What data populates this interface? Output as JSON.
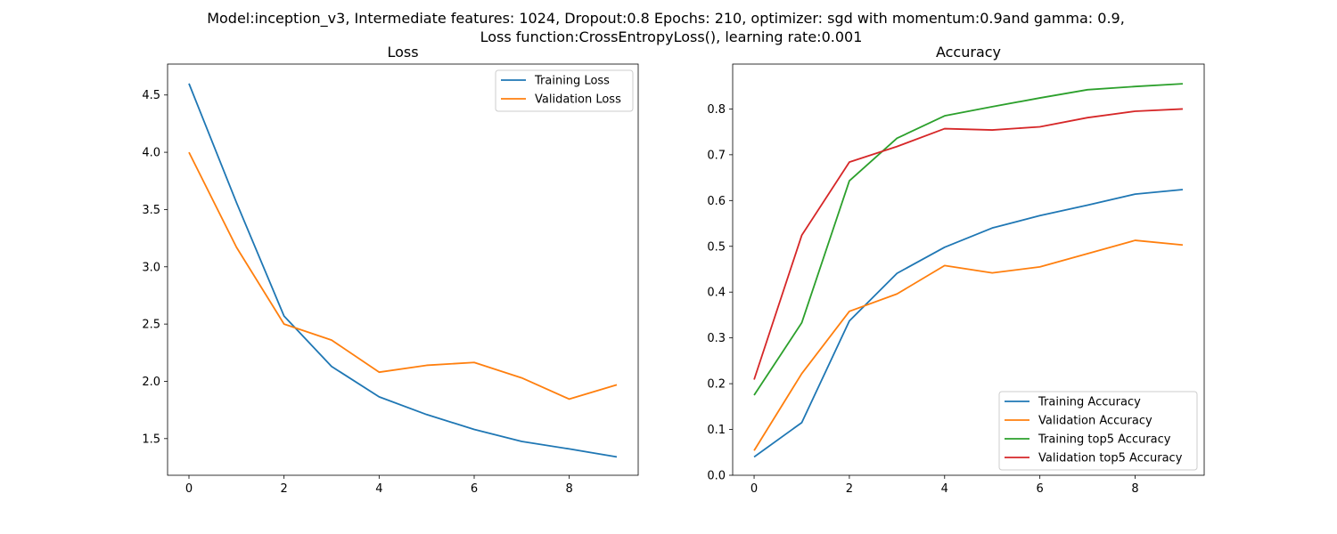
{
  "figure": {
    "suptitle_line1": "Model:inception_v3, Intermediate features: 1024, Dropout:0.8 Epochs: 210, optimizer: sgd with momentum:0.9and gamma: 0.9,",
    "suptitle_line2": "Loss function:CrossEntropyLoss(), learning rate:0.001"
  },
  "chart_data": [
    {
      "type": "line",
      "title": "Loss",
      "xlabel": "",
      "ylabel": "",
      "x": [
        0,
        1,
        2,
        3,
        4,
        5,
        6,
        7,
        8,
        9
      ],
      "xlim": [
        -0.45,
        9.45
      ],
      "ylim": [
        1.18,
        4.77
      ],
      "xticks": [
        0,
        2,
        4,
        6,
        8
      ],
      "yticks": [
        1.5,
        2.0,
        2.5,
        3.0,
        3.5,
        4.0,
        4.5
      ],
      "ytick_labels": [
        "1.5",
        "2.0",
        "2.5",
        "3.0",
        "3.5",
        "4.0",
        "4.5"
      ],
      "grid": false,
      "legend": "upper right",
      "series": [
        {
          "name": "Training Loss",
          "color": "#1f77b4",
          "values": [
            4.6,
            3.56,
            2.57,
            2.13,
            1.865,
            1.71,
            1.58,
            1.475,
            1.41,
            1.34
          ]
        },
        {
          "name": "Validation Loss",
          "color": "#ff7f0e",
          "values": [
            4.0,
            3.17,
            2.5,
            2.36,
            2.08,
            2.14,
            2.165,
            2.03,
            1.845,
            1.97
          ]
        }
      ]
    },
    {
      "type": "line",
      "title": "Accuracy",
      "xlabel": "",
      "ylabel": "",
      "x": [
        0,
        1,
        2,
        3,
        4,
        5,
        6,
        7,
        8,
        9
      ],
      "xlim": [
        -0.45,
        9.45
      ],
      "ylim": [
        0.0,
        0.898
      ],
      "xticks": [
        0,
        2,
        4,
        6,
        8
      ],
      "yticks": [
        0.0,
        0.1,
        0.2,
        0.3,
        0.4,
        0.5,
        0.6,
        0.7,
        0.8
      ],
      "ytick_labels": [
        "0.0",
        "0.1",
        "0.2",
        "0.3",
        "0.4",
        "0.5",
        "0.6",
        "0.7",
        "0.8"
      ],
      "grid": false,
      "legend": "lower right",
      "series": [
        {
          "name": "Training Accuracy",
          "color": "#1f77b4",
          "values": [
            0.04,
            0.115,
            0.337,
            0.441,
            0.498,
            0.54,
            0.567,
            0.59,
            0.614,
            0.624
          ]
        },
        {
          "name": "Validation Accuracy",
          "color": "#ff7f0e",
          "values": [
            0.054,
            0.222,
            0.358,
            0.396,
            0.458,
            0.442,
            0.455,
            0.484,
            0.513,
            0.503
          ]
        },
        {
          "name": "Training top5 Accuracy",
          "color": "#2ca02c",
          "values": [
            0.175,
            0.333,
            0.643,
            0.736,
            0.785,
            0.805,
            0.824,
            0.842,
            0.849,
            0.855
          ]
        },
        {
          "name": "Validation top5 Accuracy",
          "color": "#d62728",
          "values": [
            0.209,
            0.524,
            0.684,
            0.718,
            0.757,
            0.754,
            0.761,
            0.781,
            0.795,
            0.8
          ]
        }
      ]
    }
  ]
}
